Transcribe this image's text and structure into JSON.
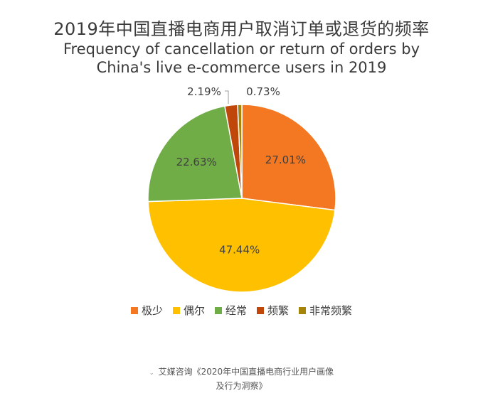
{
  "chart_data": {
    "type": "pie",
    "title": "2019年中国直播电商用户取消订单或退货的频率",
    "subtitle_lines": [
      "Frequency of cancellation or return of orders by",
      "China's live e-commerce users in 2019"
    ],
    "categories": [
      "极少",
      "偶尔",
      "经常",
      "频繁",
      "非常频繁"
    ],
    "values": [
      27.01,
      47.44,
      22.63,
      2.19,
      0.73
    ],
    "value_labels": [
      "27.01%",
      "47.44%",
      "22.63%",
      "2.19%",
      "0.73%"
    ],
    "colors": [
      "#f47721",
      "#ffc000",
      "#70ad47",
      "#c0470a",
      "#a5840a"
    ],
    "start_angle_deg": 0,
    "direction": "clockwise",
    "legend_position": "bottom"
  },
  "source": {
    "mark": "⌄",
    "lines": [
      "艾媒咨询《2020年中国直播电商行业用户画像",
      "及行为洞察》"
    ]
  }
}
